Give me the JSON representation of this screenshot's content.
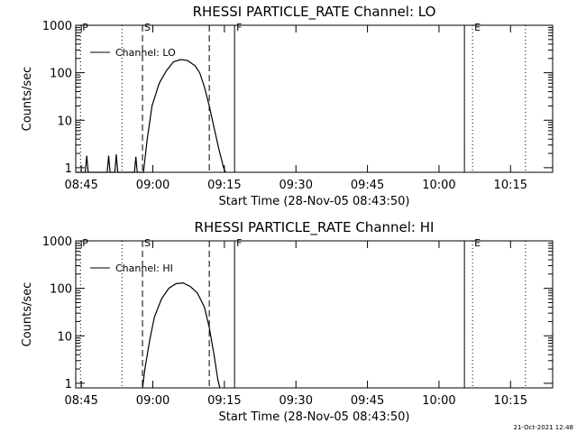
{
  "footer_timestamp": "21-Oct-2021 12:48",
  "chart_data": [
    {
      "type": "line",
      "title": "RHESSI PARTICLE_RATE Channel: LO",
      "xlabel": "Start Time (28-Nov-05 08:43:50)",
      "ylabel": "Counts/sec",
      "x_unit": "minutes since 08:43:50",
      "xlim": [
        0,
        100
      ],
      "ylim": [
        0.8,
        1000
      ],
      "yscale": "log",
      "xticks": [
        {
          "label": "08:45",
          "value": 1.17
        },
        {
          "label": "09:00",
          "value": 16.17
        },
        {
          "label": "09:15",
          "value": 31.17
        },
        {
          "label": "09:30",
          "value": 46.17
        },
        {
          "label": "09:45",
          "value": 61.17
        },
        {
          "label": "10:00",
          "value": 76.17
        },
        {
          "label": "10:15",
          "value": 91.17
        }
      ],
      "yticks": [
        {
          "label": "1",
          "value": 1
        },
        {
          "label": "10",
          "value": 10
        },
        {
          "label": "100",
          "value": 100
        },
        {
          "label": "1000",
          "value": 1000
        }
      ],
      "legend": "Channel: LO",
      "legend_position": "top-left",
      "markers": [
        {
          "label": "P",
          "x": 1.0,
          "style": "dotted"
        },
        {
          "label": "",
          "x": 9.7,
          "style": "dotted"
        },
        {
          "label": "S",
          "x": 14.0,
          "style": "dashed"
        },
        {
          "label": "",
          "x": 28.0,
          "style": "dashed"
        },
        {
          "label": "F",
          "x": 33.3,
          "style": "solid"
        },
        {
          "label": "",
          "x": 81.5,
          "style": "solid"
        },
        {
          "label": "E",
          "x": 83.2,
          "style": "dotted"
        },
        {
          "label": "",
          "x": 94.3,
          "style": "dotted"
        }
      ],
      "series": [
        {
          "name": "Channel: LO",
          "points": [
            [
              0.0,
              0.8
            ],
            [
              2.0,
              0.8
            ],
            [
              2.3,
              1.8
            ],
            [
              2.6,
              0.8
            ],
            [
              6.6,
              0.8
            ],
            [
              6.9,
              1.8
            ],
            [
              7.2,
              0.8
            ],
            [
              8.2,
              0.8
            ],
            [
              8.5,
              1.9
            ],
            [
              8.8,
              0.8
            ],
            [
              12.3,
              0.8
            ],
            [
              12.6,
              1.7
            ],
            [
              12.9,
              0.8
            ],
            [
              14.2,
              0.8
            ],
            [
              15.0,
              4
            ],
            [
              16.0,
              20
            ],
            [
              17.5,
              60
            ],
            [
              19.0,
              110
            ],
            [
              20.5,
              170
            ],
            [
              22.0,
              190
            ],
            [
              23.5,
              180
            ],
            [
              25.0,
              140
            ],
            [
              26.0,
              100
            ],
            [
              27.0,
              50
            ],
            [
              28.0,
              20
            ],
            [
              29.0,
              7
            ],
            [
              30.0,
              2.5
            ],
            [
              31.0,
              1
            ],
            [
              31.4,
              0.8
            ]
          ]
        }
      ]
    },
    {
      "type": "line",
      "title": "RHESSI PARTICLE_RATE Channel: HI",
      "xlabel": "Start Time (28-Nov-05 08:43:50)",
      "ylabel": "Counts/sec",
      "x_unit": "minutes since 08:43:50",
      "xlim": [
        0,
        100
      ],
      "ylim": [
        0.8,
        1000
      ],
      "yscale": "log",
      "xticks": [
        {
          "label": "08:45",
          "value": 1.17
        },
        {
          "label": "09:00",
          "value": 16.17
        },
        {
          "label": "09:15",
          "value": 31.17
        },
        {
          "label": "09:30",
          "value": 46.17
        },
        {
          "label": "09:45",
          "value": 61.17
        },
        {
          "label": "10:00",
          "value": 76.17
        },
        {
          "label": "10:15",
          "value": 91.17
        }
      ],
      "yticks": [
        {
          "label": "1",
          "value": 1
        },
        {
          "label": "10",
          "value": 10
        },
        {
          "label": "100",
          "value": 100
        },
        {
          "label": "1000",
          "value": 1000
        }
      ],
      "legend": "Channel: HI",
      "legend_position": "top-left",
      "markers": [
        {
          "label": "P",
          "x": 1.0,
          "style": "dotted"
        },
        {
          "label": "",
          "x": 9.7,
          "style": "dotted"
        },
        {
          "label": "S",
          "x": 14.0,
          "style": "dashed"
        },
        {
          "label": "",
          "x": 28.0,
          "style": "dashed"
        },
        {
          "label": "F",
          "x": 33.3,
          "style": "solid"
        },
        {
          "label": "",
          "x": 81.5,
          "style": "solid"
        },
        {
          "label": "E",
          "x": 83.2,
          "style": "dotted"
        },
        {
          "label": "",
          "x": 94.3,
          "style": "dotted"
        }
      ],
      "series": [
        {
          "name": "Channel: HI",
          "points": [
            [
              14.0,
              0.8
            ],
            [
              14.5,
              2
            ],
            [
              15.5,
              8
            ],
            [
              16.5,
              25
            ],
            [
              18.0,
              60
            ],
            [
              19.5,
              100
            ],
            [
              21.0,
              125
            ],
            [
              22.5,
              130
            ],
            [
              24.0,
              110
            ],
            [
              25.5,
              80
            ],
            [
              27.0,
              40
            ],
            [
              28.0,
              15
            ],
            [
              29.0,
              4
            ],
            [
              29.8,
              1.2
            ],
            [
              30.2,
              0.8
            ]
          ]
        }
      ]
    }
  ]
}
